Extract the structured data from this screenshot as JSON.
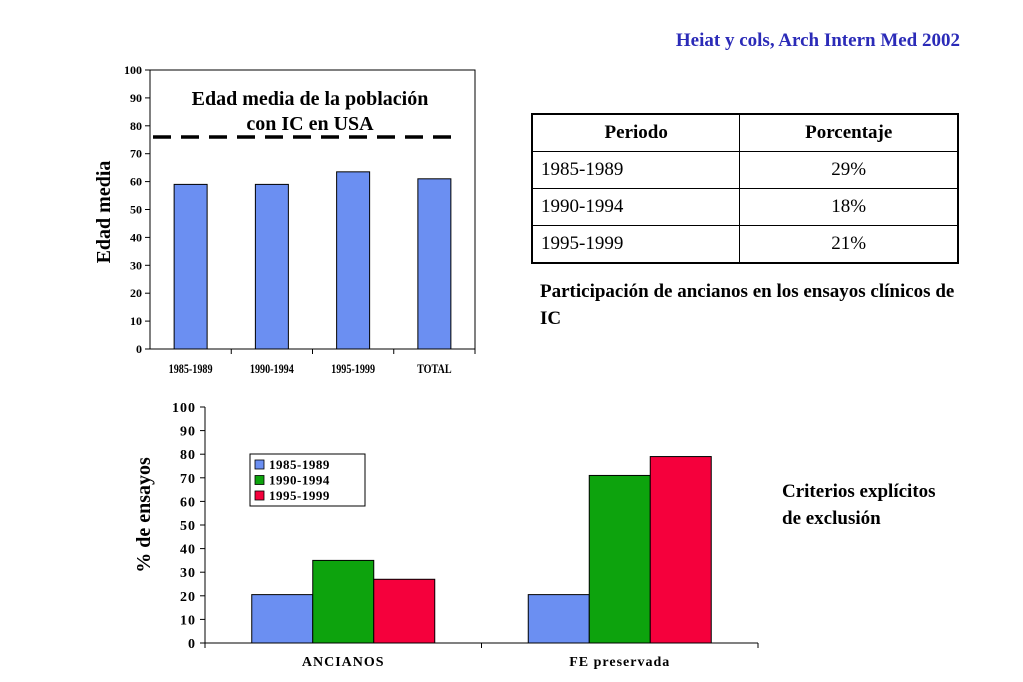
{
  "citation": "Heiat y cols, Arch Intern Med 2002",
  "table": {
    "headers": [
      "Periodo",
      "Porcentaje"
    ],
    "rows": [
      [
        "1985-1989",
        "29%"
      ],
      [
        "1990-1994",
        "18%"
      ],
      [
        "1995-1999",
        "21%"
      ]
    ],
    "caption": "Participación de ancianos en los ensayos clínicos de IC"
  },
  "side_note": "Criterios explícitos de exclusión",
  "chart_data": [
    {
      "type": "bar",
      "title_line1": "Edad media de la población",
      "title_line2": "con IC en USA",
      "categories": [
        "1985-1989",
        "1990-1994",
        "1995-1999",
        "TOTAL"
      ],
      "values": [
        59,
        59,
        63.5,
        61
      ],
      "reference_line": 76,
      "ylabel": "Edad media",
      "ylim": [
        0,
        100
      ],
      "yticks": [
        0,
        10,
        20,
        30,
        40,
        50,
        60,
        70,
        80,
        90,
        100
      ],
      "bar_color": "#6b8ff2",
      "line_color": "#000000"
    },
    {
      "type": "bar",
      "categories": [
        "ANCIANOS",
        "FE preservada"
      ],
      "series": [
        {
          "name": "1985-1989",
          "values": [
            20.5,
            20.5
          ],
          "color": "#6b8ff2"
        },
        {
          "name": "1990-1994",
          "values": [
            35,
            71
          ],
          "color": "#0da30d"
        },
        {
          "name": "1995-1999",
          "values": [
            27,
            79
          ],
          "color": "#f5003c"
        }
      ],
      "ylabel": "% de ensayos",
      "ylim": [
        0,
        100
      ],
      "yticks": [
        0,
        10,
        20,
        30,
        40,
        50,
        60,
        70,
        80,
        90,
        100
      ],
      "legend_position": "top-left"
    }
  ]
}
